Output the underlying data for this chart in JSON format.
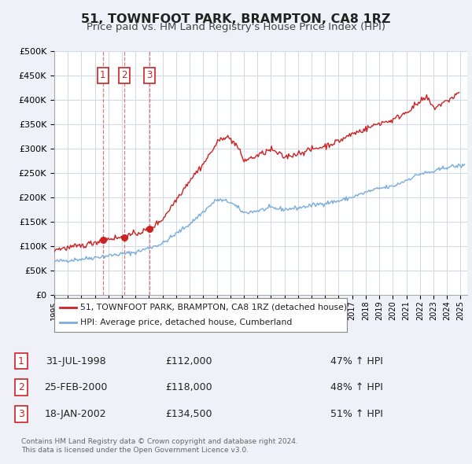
{
  "title": "51, TOWNFOOT PARK, BRAMPTON, CA8 1RZ",
  "subtitle": "Price paid vs. HM Land Registry's House Price Index (HPI)",
  "title_fontsize": 11.5,
  "subtitle_fontsize": 9.5,
  "hpi_color": "#7aaddb",
  "price_color": "#cc2222",
  "background_color": "#f0f0f8",
  "plot_bg_color": "#ffffff",
  "grid_color": "#d0d8e8",
  "xlim": [
    1995.0,
    2025.5
  ],
  "ylim": [
    0,
    500000
  ],
  "yticks": [
    0,
    50000,
    100000,
    150000,
    200000,
    250000,
    300000,
    350000,
    400000,
    450000,
    500000
  ],
  "ytick_labels": [
    "£0",
    "£50K",
    "£100K",
    "£150K",
    "£200K",
    "£250K",
    "£300K",
    "£350K",
    "£400K",
    "£450K",
    "£500K"
  ],
  "xticks": [
    1995,
    1996,
    1997,
    1998,
    1999,
    2000,
    2001,
    2002,
    2003,
    2004,
    2005,
    2006,
    2007,
    2008,
    2009,
    2010,
    2011,
    2012,
    2013,
    2014,
    2015,
    2016,
    2017,
    2018,
    2019,
    2020,
    2021,
    2022,
    2023,
    2024,
    2025
  ],
  "purchases": [
    {
      "num": 1,
      "date": "31-JUL-1998",
      "year": 1998.58,
      "price": 112000,
      "pct": "47%",
      "dir": "↑"
    },
    {
      "num": 2,
      "date": "25-FEB-2000",
      "year": 2000.15,
      "price": 118000,
      "pct": "48%",
      "dir": "↑"
    },
    {
      "num": 3,
      "date": "18-JAN-2002",
      "year": 2002.05,
      "price": 134500,
      "pct": "51%",
      "dir": "↑"
    }
  ],
  "legend_label_price": "51, TOWNFOOT PARK, BRAMPTON, CA8 1RZ (detached house)",
  "legend_label_hpi": "HPI: Average price, detached house, Cumberland",
  "footnote1": "Contains HM Land Registry data © Crown copyright and database right 2024.",
  "footnote2": "This data is licensed under the Open Government Licence v3.0."
}
